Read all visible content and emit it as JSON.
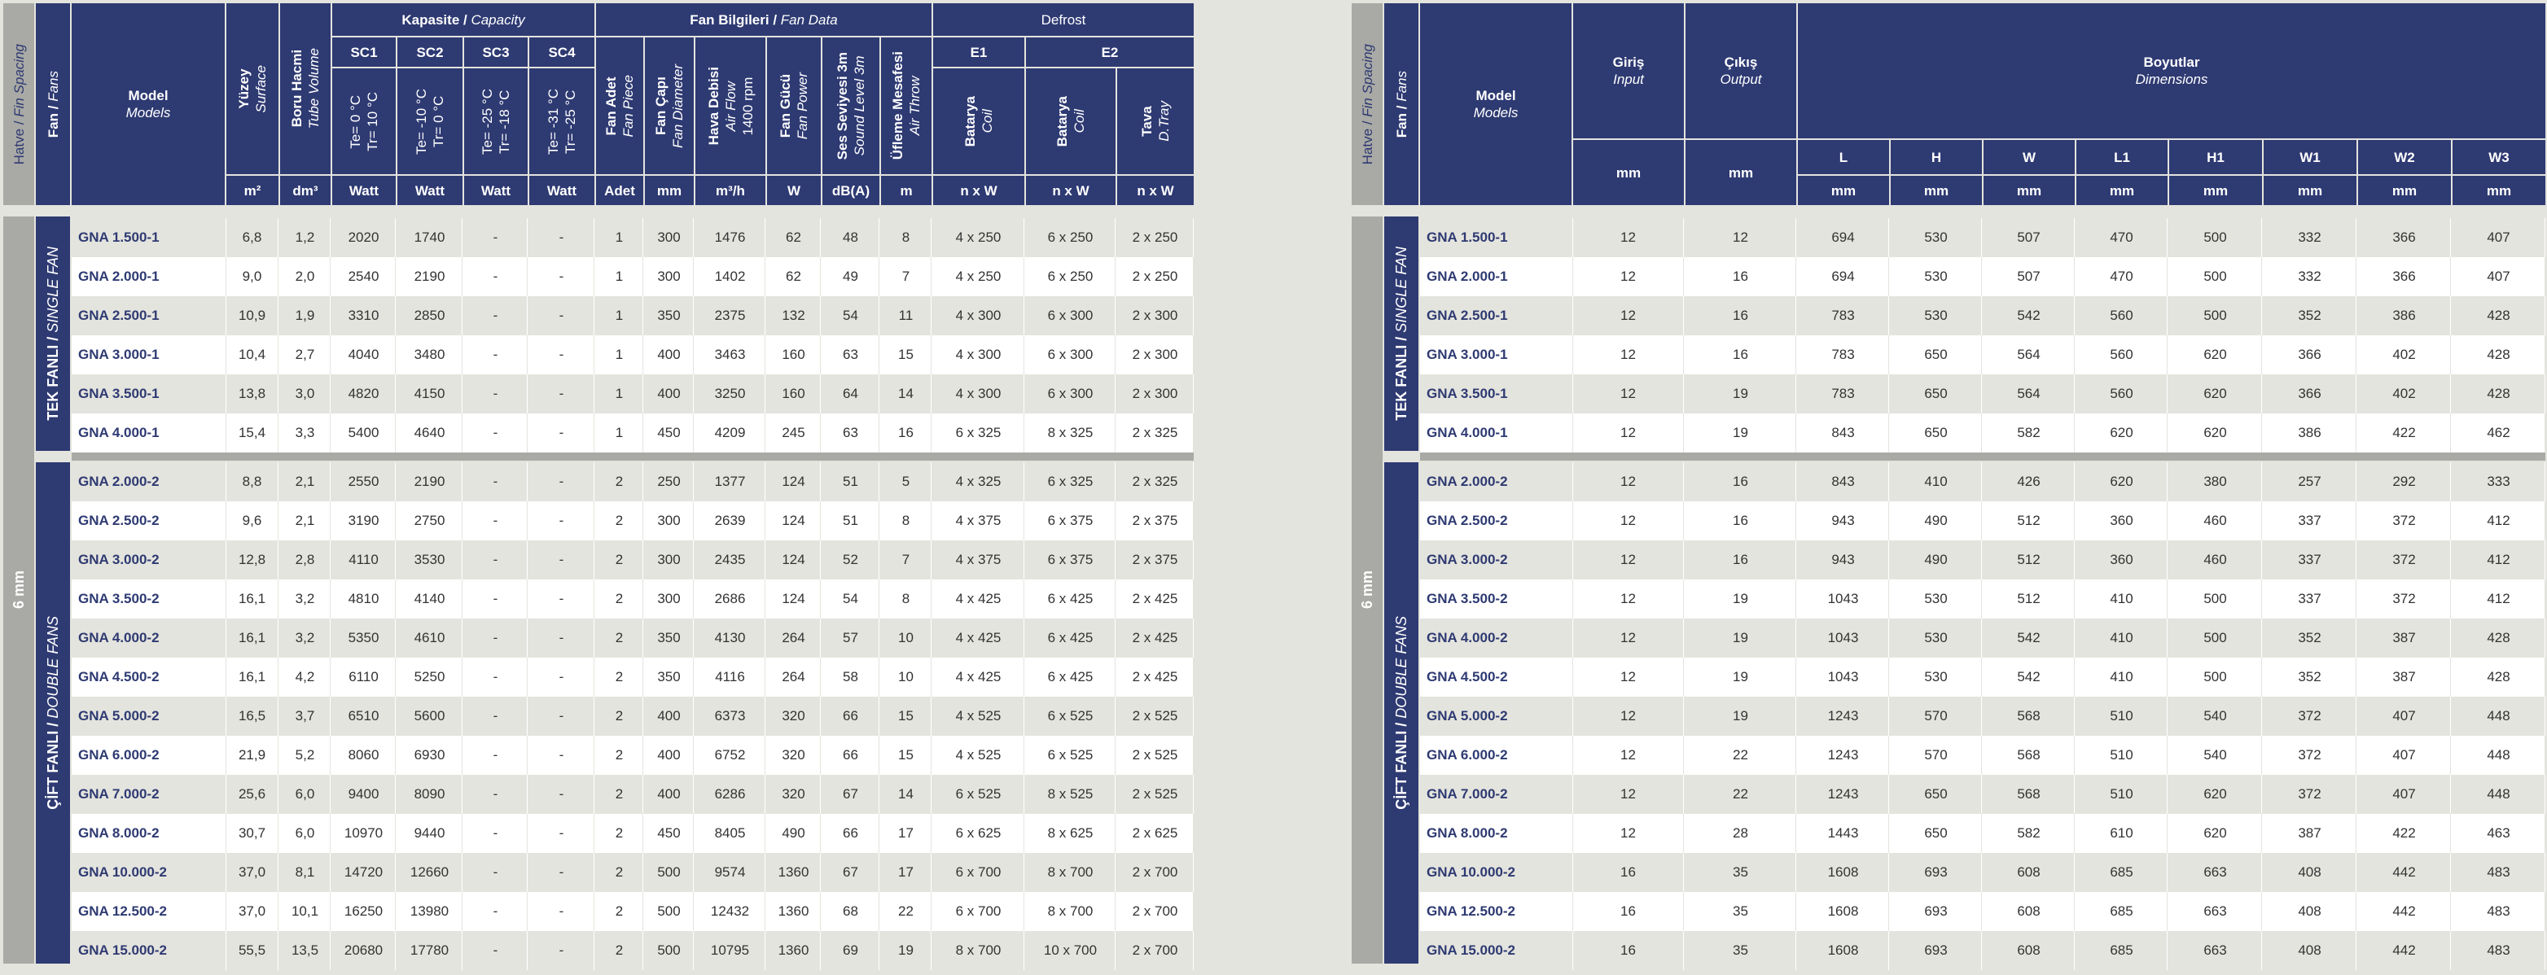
{
  "left": {
    "side_spacing": "Hatve",
    "side_spacing_en": "Fin Spacing",
    "side_fans": "Fan",
    "side_fans_en": "Fans",
    "model": "Model",
    "model_en": "Models",
    "surface": "Yüzey",
    "surface_en": "Surface",
    "tube": "Boru Hacmi",
    "tube_en": "Tube Volume",
    "capacity": "Kapasite",
    "capacity_en": "Capacity",
    "fan_data": "Fan Bilgileri",
    "fan_data_en": "Fan Data",
    "defrost": "Defrost",
    "sc1": "SC1",
    "sc2": "SC2",
    "sc3": "SC3",
    "sc4": "SC4",
    "sc1_cond": "Te= 0 °C\nTr= 10 °C",
    "sc2_cond": "Te= -10 °C\nTr= 0 °C",
    "sc3_cond": "Te= -25 °C\nTr= -18 °C",
    "sc4_cond": "Te= -31 °C\nTr= -25 °C",
    "fan_piece": "Fan Adet",
    "fan_piece_en": "Fan Piece",
    "fan_dia": "Fan Çapı",
    "fan_dia_en": "Fan Diameter",
    "air_flow": "Hava Debisi",
    "air_flow_en": "Air Flow",
    "air_flow_rpm": "1400 rpm",
    "fan_power": "Fan Gücü",
    "fan_power_en": "Fan Power",
    "sound": "Ses Seviyesi 3m",
    "sound_en": "Sound Level 3m",
    "throw": "Üfleme Mesafesi",
    "throw_en": "Air Throw",
    "e1": "E1",
    "e2": "E2",
    "coil": "Batarya",
    "coil_en": "Coil",
    "tray": "Tava",
    "tray_en": "D.Tray",
    "units": [
      "m²",
      "dm³",
      "Watt",
      "Watt",
      "Watt",
      "Watt",
      "Adet",
      "mm",
      "m³/h",
      "W",
      "dB(A)",
      "m",
      "n x W",
      "n x W",
      "n x W"
    ],
    "spacing_value": "6 mm",
    "single_fan": "TEK FANLI",
    "single_fan_en": "SINGLE FAN",
    "double_fan": "ÇİFT FANLI",
    "double_fan_en": "DOUBLE FANS"
  },
  "right": {
    "input": "Giriş",
    "input_en": "Input",
    "output": "Çıkış",
    "output_en": "Output",
    "dims": "Boyutlar",
    "dims_en": "Dimensions",
    "dim_heads": [
      "L",
      "H",
      "W",
      "L1",
      "H1",
      "W1",
      "W2",
      "W3"
    ],
    "units": [
      "mm",
      "mm",
      "mm",
      "mm",
      "mm",
      "mm",
      "mm",
      "mm",
      "mm",
      "mm"
    ]
  },
  "single_rows": [
    {
      "model": "GNA 1.500-1",
      "v": [
        "6,8",
        "1,2",
        "2020",
        "1740",
        "-",
        "-",
        "1",
        "300",
        "1476",
        "62",
        "48",
        "8",
        "4 x 250",
        "6 x 250",
        "2 x 250"
      ],
      "d": [
        "12",
        "12",
        "694",
        "530",
        "507",
        "470",
        "500",
        "332",
        "366",
        "407"
      ]
    },
    {
      "model": "GNA 2.000-1",
      "v": [
        "9,0",
        "2,0",
        "2540",
        "2190",
        "-",
        "-",
        "1",
        "300",
        "1402",
        "62",
        "49",
        "7",
        "4 x 250",
        "6 x 250",
        "2 x 250"
      ],
      "d": [
        "12",
        "16",
        "694",
        "530",
        "507",
        "470",
        "500",
        "332",
        "366",
        "407"
      ]
    },
    {
      "model": "GNA 2.500-1",
      "v": [
        "10,9",
        "1,9",
        "3310",
        "2850",
        "-",
        "-",
        "1",
        "350",
        "2375",
        "132",
        "54",
        "11",
        "4 x 300",
        "6 x 300",
        "2 x 300"
      ],
      "d": [
        "12",
        "16",
        "783",
        "530",
        "542",
        "560",
        "500",
        "352",
        "386",
        "428"
      ]
    },
    {
      "model": "GNA 3.000-1",
      "v": [
        "10,4",
        "2,7",
        "4040",
        "3480",
        "-",
        "-",
        "1",
        "400",
        "3463",
        "160",
        "63",
        "15",
        "4 x 300",
        "6 x 300",
        "2 x 300"
      ],
      "d": [
        "12",
        "16",
        "783",
        "650",
        "564",
        "560",
        "620",
        "366",
        "402",
        "428"
      ]
    },
    {
      "model": "GNA 3.500-1",
      "v": [
        "13,8",
        "3,0",
        "4820",
        "4150",
        "-",
        "-",
        "1",
        "400",
        "3250",
        "160",
        "64",
        "14",
        "4 x 300",
        "6 x 300",
        "2 x 300"
      ],
      "d": [
        "12",
        "19",
        "783",
        "650",
        "564",
        "560",
        "620",
        "366",
        "402",
        "428"
      ]
    },
    {
      "model": "GNA 4.000-1",
      "v": [
        "15,4",
        "3,3",
        "5400",
        "4640",
        "-",
        "-",
        "1",
        "450",
        "4209",
        "245",
        "63",
        "16",
        "6 x 325",
        "8 x 325",
        "2 x 325"
      ],
      "d": [
        "12",
        "19",
        "843",
        "650",
        "582",
        "620",
        "620",
        "386",
        "422",
        "462"
      ]
    }
  ],
  "double_rows": [
    {
      "model": "GNA 2.000-2",
      "v": [
        "8,8",
        "2,1",
        "2550",
        "2190",
        "-",
        "-",
        "2",
        "250",
        "1377",
        "124",
        "51",
        "5",
        "4 x 325",
        "6 x 325",
        "2 x 325"
      ],
      "d": [
        "12",
        "16",
        "843",
        "410",
        "426",
        "620",
        "380",
        "257",
        "292",
        "333"
      ]
    },
    {
      "model": "GNA 2.500-2",
      "v": [
        "9,6",
        "2,1",
        "3190",
        "2750",
        "-",
        "-",
        "2",
        "300",
        "2639",
        "124",
        "51",
        "8",
        "4 x 375",
        "6 x 375",
        "2 x 375"
      ],
      "d": [
        "12",
        "16",
        "943",
        "490",
        "512",
        "360",
        "460",
        "337",
        "372",
        "412"
      ]
    },
    {
      "model": "GNA 3.000-2",
      "v": [
        "12,8",
        "2,8",
        "4110",
        "3530",
        "-",
        "-",
        "2",
        "300",
        "2435",
        "124",
        "52",
        "7",
        "4 x 375",
        "6 x 375",
        "2 x 375"
      ],
      "d": [
        "12",
        "16",
        "943",
        "490",
        "512",
        "360",
        "460",
        "337",
        "372",
        "412"
      ]
    },
    {
      "model": "GNA 3.500-2",
      "v": [
        "16,1",
        "3,2",
        "4810",
        "4140",
        "-",
        "-",
        "2",
        "300",
        "2686",
        "124",
        "54",
        "8",
        "4 x 425",
        "6 x 425",
        "2 x 425"
      ],
      "d": [
        "12",
        "19",
        "1043",
        "530",
        "512",
        "410",
        "500",
        "337",
        "372",
        "412"
      ]
    },
    {
      "model": "GNA 4.000-2",
      "v": [
        "16,1",
        "3,2",
        "5350",
        "4610",
        "-",
        "-",
        "2",
        "350",
        "4130",
        "264",
        "57",
        "10",
        "4 x 425",
        "6 x 425",
        "2 x 425"
      ],
      "d": [
        "12",
        "19",
        "1043",
        "530",
        "542",
        "410",
        "500",
        "352",
        "387",
        "428"
      ]
    },
    {
      "model": "GNA 4.500-2",
      "v": [
        "16,1",
        "4,2",
        "6110",
        "5250",
        "-",
        "-",
        "2",
        "350",
        "4116",
        "264",
        "58",
        "10",
        "4 x 425",
        "6 x 425",
        "2 x 425"
      ],
      "d": [
        "12",
        "19",
        "1043",
        "530",
        "542",
        "410",
        "500",
        "352",
        "387",
        "428"
      ]
    },
    {
      "model": "GNA 5.000-2",
      "v": [
        "16,5",
        "3,7",
        "6510",
        "5600",
        "-",
        "-",
        "2",
        "400",
        "6373",
        "320",
        "66",
        "15",
        "4 x 525",
        "6 x 525",
        "2 x 525"
      ],
      "d": [
        "12",
        "19",
        "1243",
        "570",
        "568",
        "510",
        "540",
        "372",
        "407",
        "448"
      ]
    },
    {
      "model": "GNA 6.000-2",
      "v": [
        "21,9",
        "5,2",
        "8060",
        "6930",
        "-",
        "-",
        "2",
        "400",
        "6752",
        "320",
        "66",
        "15",
        "4 x 525",
        "6 x 525",
        "2 x 525"
      ],
      "d": [
        "12",
        "22",
        "1243",
        "570",
        "568",
        "510",
        "540",
        "372",
        "407",
        "448"
      ]
    },
    {
      "model": "GNA 7.000-2",
      "v": [
        "25,6",
        "6,0",
        "9400",
        "8090",
        "-",
        "-",
        "2",
        "400",
        "6286",
        "320",
        "67",
        "14",
        "6 x 525",
        "8 x 525",
        "2 x 525"
      ],
      "d": [
        "12",
        "22",
        "1243",
        "650",
        "568",
        "510",
        "620",
        "372",
        "407",
        "448"
      ]
    },
    {
      "model": "GNA 8.000-2",
      "v": [
        "30,7",
        "6,0",
        "10970",
        "9440",
        "-",
        "-",
        "2",
        "450",
        "8405",
        "490",
        "66",
        "17",
        "6 x 625",
        "8 x 625",
        "2 x 625"
      ],
      "d": [
        "12",
        "28",
        "1443",
        "650",
        "582",
        "610",
        "620",
        "387",
        "422",
        "463"
      ]
    },
    {
      "model": "GNA 10.000-2",
      "v": [
        "37,0",
        "8,1",
        "14720",
        "12660",
        "-",
        "-",
        "2",
        "500",
        "9574",
        "1360",
        "67",
        "17",
        "6 x 700",
        "8 x 700",
        "2 x 700"
      ],
      "d": [
        "16",
        "35",
        "1608",
        "693",
        "608",
        "685",
        "663",
        "408",
        "442",
        "483"
      ]
    },
    {
      "model": "GNA 12.500-2",
      "v": [
        "37,0",
        "10,1",
        "16250",
        "13980",
        "-",
        "-",
        "2",
        "500",
        "12432",
        "1360",
        "68",
        "22",
        "6 x 700",
        "8 x 700",
        "2 x 700"
      ],
      "d": [
        "16",
        "35",
        "1608",
        "693",
        "608",
        "685",
        "663",
        "408",
        "442",
        "483"
      ]
    },
    {
      "model": "GNA 15.000-2",
      "v": [
        "55,5",
        "13,5",
        "20680",
        "17780",
        "-",
        "-",
        "2",
        "500",
        "10795",
        "1360",
        "69",
        "19",
        "8 x 700",
        "10 x 700",
        "2 x 700"
      ],
      "d": [
        "16",
        "35",
        "1608",
        "693",
        "608",
        "685",
        "663",
        "408",
        "442",
        "483"
      ]
    }
  ]
}
